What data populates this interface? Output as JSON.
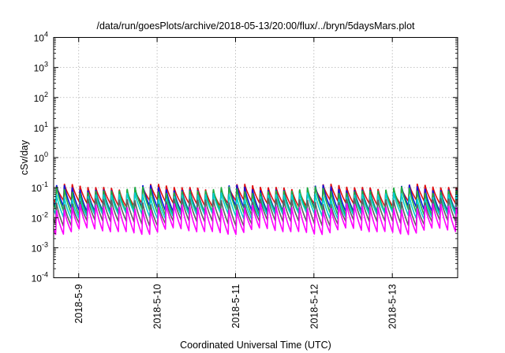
{
  "chart_data": {
    "type": "line",
    "title": "/data/run/goesPlots/archive/2018-05-13/20:00/flux/../bryn/5daysMars.plot",
    "xlabel": "Coordinated Universal Time (UTC)",
    "ylabel": "cSv/day",
    "yscale": "log",
    "ylim": [
      0.0001,
      10000
    ],
    "y_ticks": [
      {
        "base": "10",
        "exp": "-4",
        "value": 0.0001
      },
      {
        "base": "10",
        "exp": "-3",
        "value": 0.001
      },
      {
        "base": "10",
        "exp": "-2",
        "value": 0.01
      },
      {
        "base": "10",
        "exp": "-1",
        "value": 0.1
      },
      {
        "base": "10",
        "exp": "0",
        "value": 1
      },
      {
        "base": "10",
        "exp": "1",
        "value": 10
      },
      {
        "base": "10",
        "exp": "2",
        "value": 100
      },
      {
        "base": "10",
        "exp": "3",
        "value": 1000
      },
      {
        "base": "10",
        "exp": "4",
        "value": 10000
      }
    ],
    "xlim": [
      "2018-05-08T16:20",
      "2018-05-13T20:00"
    ],
    "x_ticks": [
      {
        "label": "2018-5-9",
        "value": "2018-05-09"
      },
      {
        "label": "2018-5-10",
        "value": "2018-05-10"
      },
      {
        "label": "2018-5-11",
        "value": "2018-05-11"
      },
      {
        "label": "2018-5-12",
        "value": "2018-05-12"
      },
      {
        "label": "2018-5-13",
        "value": "2018-05-13"
      }
    ],
    "grid": true,
    "legend": "none",
    "periodic_pattern": {
      "period_hours": 2.4,
      "phase_fraction": 0.75,
      "description": "sawtooth: sharp rise then decay each period"
    },
    "series": [
      {
        "color": "#e01010",
        "peak_value": 0.11,
        "trough_value": 0.03
      },
      {
        "color": "#1010e0",
        "peak_value": 0.1,
        "trough_value": 0.018
      },
      {
        "color": "#20b040",
        "peak_value": 0.09,
        "trough_value": 0.015
      },
      {
        "color": "#00d0d0",
        "peak_value": 0.06,
        "trough_value": 0.012
      },
      {
        "color": "#606060",
        "peak_value": 0.04,
        "trough_value": 0.007
      },
      {
        "color": "#ff00ff",
        "peak_value": 0.025,
        "trough_value": 0.0035
      }
    ]
  }
}
